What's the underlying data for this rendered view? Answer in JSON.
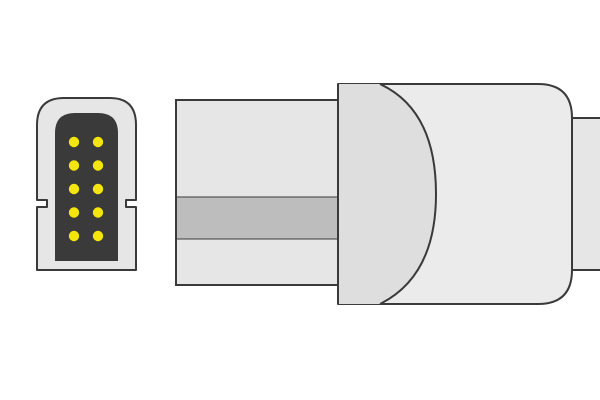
{
  "colors": {
    "background": "#ffffff",
    "housing_fill": "#e6e6e6",
    "housing_fill_light": "#ebebeb",
    "outline": "#3a3a3a",
    "pin_chamber": "#3a3a3a",
    "pin": "#f4e60c",
    "band": "#bdbdbd",
    "hood_shadow": "#d9d9d9"
  },
  "connector": {
    "pin_count": 10,
    "pin_rows": 5,
    "pin_columns": 2
  }
}
